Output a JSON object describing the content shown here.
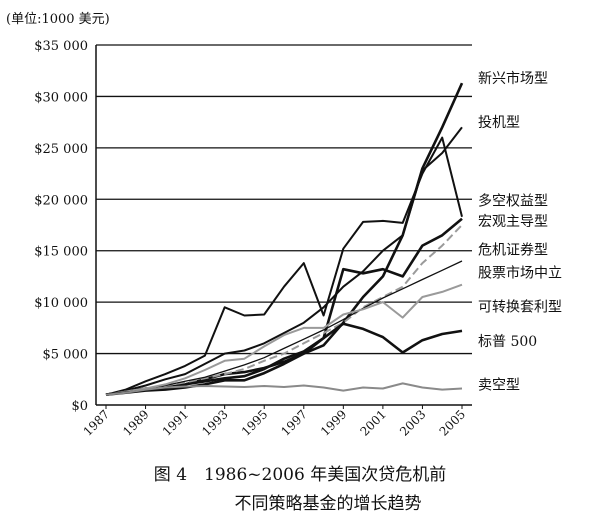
{
  "unit_label": "(单位:1000 美元)",
  "caption": {
    "line1": "图 4　1986~2006 年美国次贷危机前",
    "line2": "不同策略基金的增长趋势"
  },
  "chart_data": {
    "type": "line",
    "title": "",
    "xlabel": "",
    "ylabel": "",
    "x": [
      1987,
      1988,
      1989,
      1990,
      1991,
      1992,
      1993,
      1994,
      1995,
      1996,
      1997,
      1998,
      1999,
      2000,
      2001,
      2002,
      2003,
      2004,
      2005
    ],
    "x_ticks": [
      "1987",
      "1989",
      "1991",
      "1993",
      "1995",
      "1997",
      "1999",
      "2001",
      "2003",
      "2005"
    ],
    "y_ticks": [
      "$0",
      "$5 000",
      "$10 000",
      "$15 000",
      "$20 000",
      "$25 000",
      "$30 000",
      "$35 000"
    ],
    "ylim": [
      0,
      35000
    ],
    "grid": "horizontal",
    "legend": "right, labels at line ends",
    "series": [
      {
        "name": "新兴市场型",
        "color": "#111111",
        "width": 2.6,
        "dash": "",
        "label_y": 31800,
        "values": [
          1000,
          1300,
          1600,
          1700,
          2000,
          2500,
          3000,
          3200,
          3600,
          4200,
          5000,
          5800,
          8000,
          10500,
          12500,
          16500,
          23000,
          27000,
          31300
        ]
      },
      {
        "name": "投机型",
        "color": "#111111",
        "width": 2.0,
        "dash": "",
        "label_y": 27500,
        "values": [
          1000,
          1400,
          1900,
          2500,
          3000,
          4000,
          5000,
          5300,
          6000,
          7000,
          8000,
          9500,
          11500,
          13000,
          15000,
          16500,
          22800,
          24500,
          27000
        ]
      },
      {
        "name": "多空权益型",
        "color": "#111111",
        "width": 2.0,
        "dash": "",
        "label_y": 19900,
        "values": [
          1000,
          1500,
          2300,
          3000,
          3800,
          4800,
          9500,
          8700,
          8800,
          11500,
          13800,
          8700,
          15200,
          17800,
          17900,
          17700,
          22500,
          26000,
          18300
        ]
      },
      {
        "name": "宏观主导型",
        "color": "#111111",
        "width": 2.6,
        "dash": "",
        "label_y": 17900,
        "values": [
          1000,
          1300,
          1500,
          1600,
          2000,
          2300,
          2600,
          2800,
          3500,
          4500,
          5200,
          6500,
          13200,
          12800,
          13200,
          12500,
          15500,
          16500,
          18100
        ]
      },
      {
        "name": "危机证券型",
        "color": "#9a9a9a",
        "width": 2.0,
        "dash": "8,4",
        "label_y": 15100,
        "values": [
          1000,
          1300,
          1600,
          1900,
          2200,
          2600,
          3000,
          3500,
          4300,
          5000,
          6000,
          7000,
          8000,
          9500,
          10500,
          11500,
          13800,
          15500,
          17500
        ]
      },
      {
        "name": "股票市场中立",
        "color": "#111111",
        "width": 1.3,
        "dash": "",
        "label_y": 12900,
        "values": [
          1000,
          1300,
          1600,
          1900,
          2300,
          2700,
          3300,
          3900,
          4600,
          5500,
          6400,
          7300,
          8300,
          9400,
          10400,
          11300,
          12200,
          13100,
          14000
        ]
      },
      {
        "name": "可转换套利型",
        "color": "#9a9a9a",
        "width": 2.0,
        "dash": "",
        "label_y": 9600,
        "values": [
          1000,
          1300,
          1600,
          2000,
          2600,
          3400,
          4300,
          4500,
          5700,
          6800,
          7500,
          7500,
          8800,
          9300,
          10000,
          8500,
          10500,
          11000,
          11700
        ]
      },
      {
        "name": "标普 500",
        "color": "#111111",
        "width": 2.6,
        "dash": "",
        "label_y": 6200,
        "values": [
          1000,
          1200,
          1400,
          1500,
          1700,
          2000,
          2400,
          2400,
          3100,
          4000,
          5000,
          6500,
          7900,
          7400,
          6600,
          5100,
          6300,
          6900,
          7200
        ]
      },
      {
        "name": "卖空型",
        "color": "#8a8a8a",
        "width": 2.0,
        "dash": "",
        "label_y": 2000,
        "values": [
          1000,
          1200,
          1500,
          1700,
          1800,
          1850,
          1800,
          1750,
          1850,
          1750,
          1900,
          1700,
          1400,
          1700,
          1600,
          2100,
          1700,
          1500,
          1600
        ]
      }
    ]
  }
}
